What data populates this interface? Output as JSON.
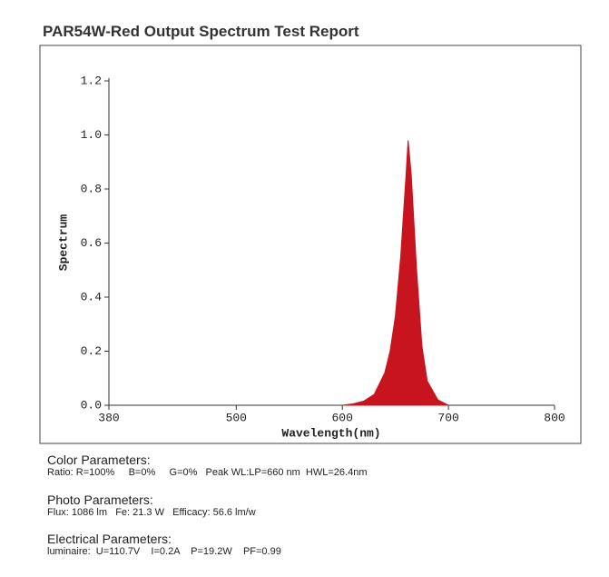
{
  "chart_data": {
    "type": "area",
    "title": "PAR54W-Red Output Spectrum Test Report",
    "x_label": "Wavelength(nm)",
    "y_label": "Spectrum",
    "x": [
      600,
      610,
      620,
      630,
      640,
      645,
      650,
      655,
      660,
      662,
      665,
      670,
      675,
      680,
      690,
      700
    ],
    "values": [
      0,
      0.005,
      0.015,
      0.04,
      0.12,
      0.2,
      0.33,
      0.55,
      0.85,
      0.98,
      0.85,
      0.5,
      0.22,
      0.09,
      0.02,
      0
    ],
    "color": "#c8141e",
    "xlim": [
      380,
      800
    ],
    "xticks": [
      380,
      500,
      600,
      700,
      800
    ],
    "ylim": [
      0,
      1.2
    ],
    "yticks": [
      {
        "value": 0,
        "label": "0.0"
      },
      0.2,
      0.4,
      0.6,
      0.8,
      {
        "value": 1,
        "label": "1.0"
      },
      1.2
    ],
    "grid": false
  },
  "report": {
    "sections": [
      {
        "heading": "Color Parameters:",
        "line": "Ratio: R=100%     B=0%     G=0%   Peak WL:LP=660 nm  HWL=26.4nm"
      },
      {
        "heading": "Photo Parameters:",
        "line": "Flux: 1086 lm   Fe: 21.3 W   Efficacy: 56.6 lm/w"
      },
      {
        "heading": "Electrical Parameters:",
        "line": "luminaire:  U=110.7V    I=0.2A    P=19.2W    PF=0.99"
      }
    ]
  }
}
